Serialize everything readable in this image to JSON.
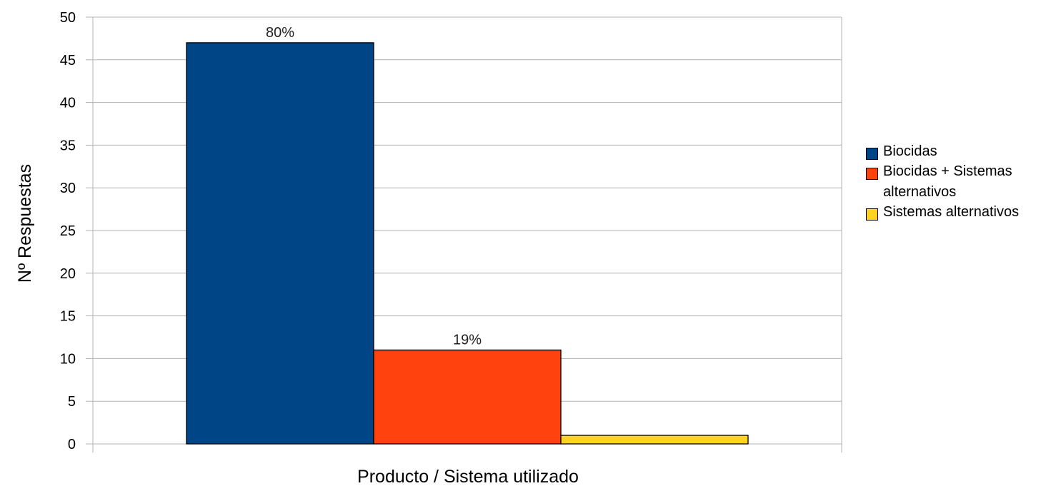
{
  "chart_data": {
    "type": "bar",
    "title": "",
    "xlabel": "Producto / Sistema utilizado",
    "ylabel": "Nº Respuestas",
    "ylim": [
      0,
      50
    ],
    "yticks": [
      0,
      5,
      10,
      15,
      20,
      25,
      30,
      35,
      40,
      45,
      50
    ],
    "grid": true,
    "legend_position": "right",
    "series": [
      {
        "name": "Biocidas",
        "value": 47,
        "label": "80%",
        "color": "#004586"
      },
      {
        "name": "Biocidas + Sistemas alternativos",
        "value": 11,
        "label": "19%",
        "color": "#ff420e"
      },
      {
        "name": "Sistemas alternativos",
        "value": 1,
        "label": "",
        "color": "#ffd320"
      }
    ]
  }
}
